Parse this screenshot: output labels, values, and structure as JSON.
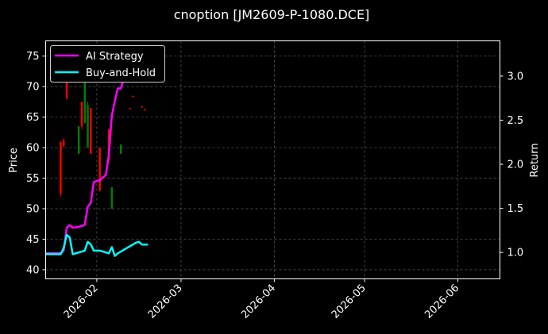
{
  "chart_data": {
    "type": "line",
    "title": "cnoption [JM2609-P-1080.DCE]",
    "background": "#000000",
    "grid": true,
    "legend_placement": "top-left",
    "x_axis": {
      "type": "date",
      "range": [
        "2026-01-15",
        "2026-06-15"
      ],
      "tick_labels": [
        "2026-02",
        "2026-03",
        "2026-04",
        "2026-05",
        "2026-06"
      ],
      "tick_dates": [
        "2026-02-01",
        "2026-03-01",
        "2026-04-01",
        "2026-05-01",
        "2026-06-01"
      ]
    },
    "y_left": {
      "label": "Price",
      "range": [
        38.5,
        77.5
      ],
      "ticks": [
        40,
        45,
        50,
        55,
        60,
        65,
        70,
        75
      ]
    },
    "y_right": {
      "label": "Return",
      "range": [
        0.7,
        3.4
      ],
      "ticks": [
        1.0,
        1.5,
        2.0,
        2.5,
        3.0
      ],
      "tick_labels": [
        "1.0",
        "1.5",
        "2.0",
        "2.5",
        "3.0"
      ]
    },
    "candlestick_colors": {
      "up": "#008000",
      "down": "#ff0000"
    },
    "candles": [
      {
        "date": "2026-01-20",
        "open": 61.0,
        "close": 52.5,
        "high": 61.0,
        "low": 52.0
      },
      {
        "date": "2026-01-21",
        "open": 61.2,
        "close": 60.3,
        "high": 61.5,
        "low": 60.0
      },
      {
        "date": "2026-01-22",
        "open": 75.5,
        "close": 68.0,
        "high": 76.0,
        "low": 68.0
      },
      {
        "date": "2026-01-26",
        "open": 59.0,
        "close": 63.5,
        "high": 63.5,
        "low": 59.0
      },
      {
        "date": "2026-01-27",
        "open": 67.5,
        "close": 63.5,
        "high": 67.5,
        "low": 63.0
      },
      {
        "date": "2026-01-28",
        "open": 64.0,
        "close": 71.0,
        "high": 71.5,
        "low": 64.0
      },
      {
        "date": "2026-01-29",
        "open": 60.0,
        "close": 67.0,
        "high": 67.5,
        "low": 60.0
      },
      {
        "date": "2026-01-30",
        "open": 66.5,
        "close": 59.0,
        "high": 66.5,
        "low": 59.0
      },
      {
        "date": "2026-02-02",
        "open": 60.0,
        "close": 53.0,
        "high": 60.0,
        "low": 52.8
      },
      {
        "date": "2026-02-05",
        "open": 63.0,
        "close": 58.0,
        "high": 63.0,
        "low": 57.5
      },
      {
        "date": "2026-02-06",
        "open": 50.0,
        "close": 53.5,
        "high": 53.5,
        "low": 50.0
      },
      {
        "date": "2026-02-09",
        "open": 59.0,
        "close": 60.5,
        "high": 60.5,
        "low": 59.0
      },
      {
        "date": "2026-02-12",
        "open": 66.5,
        "close": 66.3,
        "high": 66.5,
        "low": 66.3
      },
      {
        "date": "2026-02-13",
        "open": 68.5,
        "close": 68.3,
        "high": 68.5,
        "low": 68.3
      },
      {
        "date": "2026-02-16",
        "open": 66.8,
        "close": 66.6,
        "high": 66.8,
        "low": 66.6
      },
      {
        "date": "2026-02-17",
        "open": 66.3,
        "close": 66.1,
        "high": 66.3,
        "low": 66.1
      }
    ],
    "series": [
      {
        "name": "AI Strategy",
        "color": "#ff00ff",
        "axis": "right",
        "points": [
          [
            "2026-01-15",
            0.99
          ],
          [
            "2026-01-20",
            0.99
          ],
          [
            "2026-01-21",
            1.02
          ],
          [
            "2026-01-22",
            1.28
          ],
          [
            "2026-01-23",
            1.31
          ],
          [
            "2026-01-24",
            1.28
          ],
          [
            "2026-01-26",
            1.29
          ],
          [
            "2026-01-27",
            1.3
          ],
          [
            "2026-01-28",
            1.31
          ],
          [
            "2026-01-29",
            1.52
          ],
          [
            "2026-01-30",
            1.56
          ],
          [
            "2026-01-31",
            1.8
          ],
          [
            "2026-02-02",
            1.82
          ],
          [
            "2026-02-03",
            1.85
          ],
          [
            "2026-02-04",
            1.88
          ],
          [
            "2026-02-05",
            2.1
          ],
          [
            "2026-02-06",
            2.55
          ],
          [
            "2026-02-07",
            2.72
          ],
          [
            "2026-02-08",
            2.86
          ],
          [
            "2026-02-09",
            2.86
          ],
          [
            "2026-02-10",
            2.98
          ],
          [
            "2026-02-11",
            3.05
          ],
          [
            "2026-02-12",
            3.15
          ]
        ]
      },
      {
        "name": "Buy-and-Hold",
        "color": "#00ffff",
        "axis": "right",
        "points": [
          [
            "2026-01-15",
            0.98
          ],
          [
            "2026-01-20",
            0.98
          ],
          [
            "2026-01-21",
            1.05
          ],
          [
            "2026-01-22",
            1.2
          ],
          [
            "2026-01-23",
            1.17
          ],
          [
            "2026-01-24",
            0.98
          ],
          [
            "2026-01-26",
            1.0
          ],
          [
            "2026-01-27",
            1.01
          ],
          [
            "2026-01-28",
            1.02
          ],
          [
            "2026-01-29",
            1.12
          ],
          [
            "2026-01-30",
            1.09
          ],
          [
            "2026-01-31",
            1.02
          ],
          [
            "2026-02-02",
            1.02
          ],
          [
            "2026-02-03",
            1.01
          ],
          [
            "2026-02-04",
            1.0
          ],
          [
            "2026-02-05",
            0.99
          ],
          [
            "2026-02-06",
            1.06
          ],
          [
            "2026-02-07",
            0.96
          ],
          [
            "2026-02-08",
            0.99
          ],
          [
            "2026-02-09",
            1.01
          ],
          [
            "2026-02-10",
            1.03
          ],
          [
            "2026-02-11",
            1.05
          ],
          [
            "2026-02-12",
            1.07
          ],
          [
            "2026-02-13",
            1.09
          ],
          [
            "2026-02-14",
            1.11
          ],
          [
            "2026-02-15",
            1.12
          ],
          [
            "2026-02-16",
            1.09
          ],
          [
            "2026-02-18",
            1.09
          ]
        ]
      }
    ]
  }
}
